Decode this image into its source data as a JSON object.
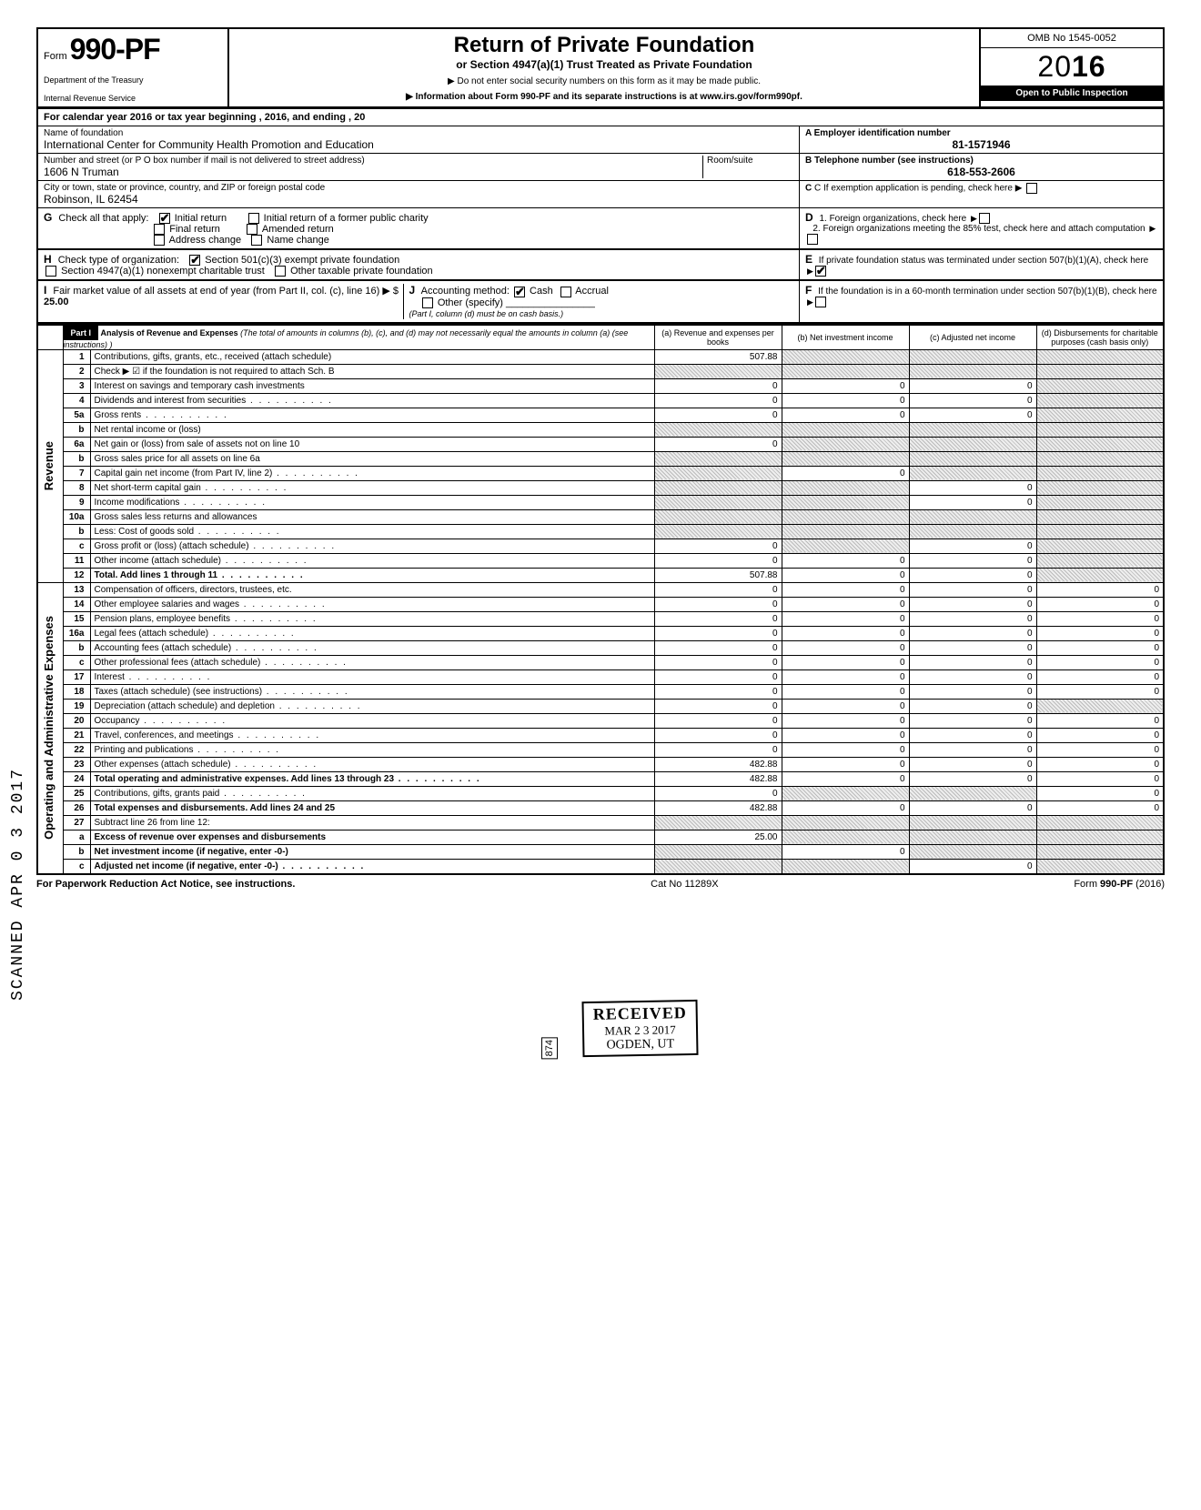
{
  "header": {
    "form_prefix": "Form",
    "form_no": "990-PF",
    "dept1": "Department of the Treasury",
    "dept2": "Internal Revenue Service",
    "title": "Return of Private Foundation",
    "subtitle": "or Section 4947(a)(1) Trust Treated as Private Foundation",
    "line1": "▶ Do not enter social security numbers on this form as it may be made public.",
    "line2": "▶ Information about Form 990-PF and its separate instructions is at www.irs.gov/form990pf.",
    "omb": "OMB No 1545-0052",
    "year_prefix": "20",
    "year_bold": "16",
    "open": "Open to Public Inspection"
  },
  "cal": "For calendar year 2016 or tax year beginning                                                    , 2016, and ending                                        , 20",
  "id": {
    "name_lbl": "Name of foundation",
    "name": "International Center for Community Health Promotion and Education",
    "addr_lbl": "Number and street (or P O  box number if mail is not delivered to street address)",
    "addr": "1606 N Truman",
    "city_lbl": "City or town, state or province, country, and ZIP or foreign postal code",
    "city": "Robinson, IL 62454",
    "room_lbl": "Room/suite",
    "ein_lbl": "A  Employer identification number",
    "ein": "81-1571946",
    "tel_lbl": "B  Telephone number (see instructions)",
    "tel": "618-553-2606",
    "c_lbl": "C  If exemption application is pending, check here ▶"
  },
  "g": {
    "label": "Check all that apply:",
    "opts": [
      "Initial return",
      "Initial return of a former public charity",
      "Final return",
      "Amended return",
      "Address change",
      "Name change"
    ]
  },
  "h": {
    "label": "Check type of organization:",
    "opt1": "Section 501(c)(3) exempt private foundation",
    "opt2": "Section 4947(a)(1) nonexempt charitable trust",
    "opt3": "Other taxable private foundation"
  },
  "i": {
    "label": "Fair market value of all assets at end of year  (from Part II, col. (c), line 16) ▶ $",
    "val": "25.00"
  },
  "j": {
    "label": "Accounting method:",
    "cash": "Cash",
    "accrual": "Accrual",
    "other": "Other (specify)",
    "note": "(Part I, column (d) must be on cash basis.)"
  },
  "d": {
    "d1": "1. Foreign organizations, check here",
    "d2": "2. Foreign organizations meeting the 85% test, check here and attach computation",
    "e": "If private foundation status was terminated under section 507(b)(1)(A), check here",
    "f": "If the foundation is in a 60-month termination under section 507(b)(1)(B), check here"
  },
  "part1": {
    "tag": "Part I",
    "title": "Analysis of Revenue and Expenses",
    "note": "(The total of amounts in columns (b), (c), and (d) may not necessarily equal the amounts in column (a) (see instructions) )",
    "cols": {
      "a": "(a) Revenue and expenses per books",
      "b": "(b) Net investment income",
      "c": "(c) Adjusted net income",
      "d": "(d) Disbursements for charitable purposes (cash basis only)"
    }
  },
  "side": {
    "rev": "Revenue",
    "exp": "Operating and Administrative Expenses"
  },
  "rows": [
    {
      "n": "1",
      "d": "Contributions, gifts, grants, etc., received (attach schedule)",
      "a": "507.88",
      "b": "",
      "c": "",
      "dd": "",
      "sb": true,
      "sc": true,
      "sd": true
    },
    {
      "n": "2",
      "d": "Check ▶ ☑ if the foundation is not required to attach Sch. B",
      "a": "",
      "b": "",
      "c": "",
      "dd": "",
      "sa": true,
      "sb": true,
      "sc": true,
      "sd": true
    },
    {
      "n": "3",
      "d": "Interest on savings and temporary cash investments",
      "a": "0",
      "b": "0",
      "c": "0",
      "dd": "",
      "sd": true
    },
    {
      "n": "4",
      "d": "Dividends and interest from securities",
      "a": "0",
      "b": "0",
      "c": "0",
      "dd": "",
      "sd": true,
      "dots": true
    },
    {
      "n": "5a",
      "d": "Gross rents",
      "a": "0",
      "b": "0",
      "c": "0",
      "dd": "",
      "sd": true,
      "dots": true
    },
    {
      "n": "b",
      "d": "Net rental income or (loss)",
      "a": "",
      "b": "",
      "c": "",
      "dd": "",
      "sa": true,
      "sb": true,
      "sc": true,
      "sd": true
    },
    {
      "n": "6a",
      "d": "Net gain or (loss) from sale of assets not on line 10",
      "a": "0",
      "b": "",
      "c": "",
      "dd": "",
      "sb": true,
      "sc": true,
      "sd": true
    },
    {
      "n": "b",
      "d": "Gross sales price for all assets on line 6a",
      "a": "",
      "b": "",
      "c": "",
      "dd": "",
      "sa": true,
      "sb": true,
      "sc": true,
      "sd": true
    },
    {
      "n": "7",
      "d": "Capital gain net income (from Part IV, line 2)",
      "a": "",
      "b": "0",
      "c": "",
      "dd": "",
      "sa": true,
      "sc": true,
      "sd": true,
      "dots": true
    },
    {
      "n": "8",
      "d": "Net short-term capital gain",
      "a": "",
      "b": "",
      "c": "0",
      "dd": "",
      "sa": true,
      "sb": true,
      "sd": true,
      "dots": true
    },
    {
      "n": "9",
      "d": "Income modifications",
      "a": "",
      "b": "",
      "c": "0",
      "dd": "",
      "sa": true,
      "sb": true,
      "sd": true,
      "dots": true
    },
    {
      "n": "10a",
      "d": "Gross sales less returns and allowances",
      "a": "",
      "b": "",
      "c": "",
      "dd": "",
      "sa": true,
      "sb": true,
      "sc": true,
      "sd": true
    },
    {
      "n": "b",
      "d": "Less: Cost of goods sold",
      "a": "",
      "b": "",
      "c": "",
      "dd": "",
      "sa": true,
      "sb": true,
      "sc": true,
      "sd": true,
      "dots": true
    },
    {
      "n": "c",
      "d": "Gross profit or (loss) (attach schedule)",
      "a": "0",
      "b": "",
      "c": "0",
      "dd": "",
      "sb": true,
      "sd": true,
      "dots": true
    },
    {
      "n": "11",
      "d": "Other income (attach schedule)",
      "a": "0",
      "b": "0",
      "c": "0",
      "dd": "",
      "sd": true,
      "dots": true
    },
    {
      "n": "12",
      "d": "Total. Add lines 1 through 11",
      "a": "507.88",
      "b": "0",
      "c": "0",
      "dd": "",
      "sd": true,
      "bold": true,
      "dots": true
    },
    {
      "n": "13",
      "d": "Compensation of officers, directors, trustees, etc.",
      "a": "0",
      "b": "0",
      "c": "0",
      "dd": "0"
    },
    {
      "n": "14",
      "d": "Other employee salaries and wages",
      "a": "0",
      "b": "0",
      "c": "0",
      "dd": "0",
      "dots": true
    },
    {
      "n": "15",
      "d": "Pension plans, employee benefits",
      "a": "0",
      "b": "0",
      "c": "0",
      "dd": "0",
      "dots": true
    },
    {
      "n": "16a",
      "d": "Legal fees (attach schedule)",
      "a": "0",
      "b": "0",
      "c": "0",
      "dd": "0",
      "dots": true
    },
    {
      "n": "b",
      "d": "Accounting fees (attach schedule)",
      "a": "0",
      "b": "0",
      "c": "0",
      "dd": "0",
      "dots": true
    },
    {
      "n": "c",
      "d": "Other professional fees (attach schedule)",
      "a": "0",
      "b": "0",
      "c": "0",
      "dd": "0",
      "dots": true
    },
    {
      "n": "17",
      "d": "Interest",
      "a": "0",
      "b": "0",
      "c": "0",
      "dd": "0",
      "dots": true
    },
    {
      "n": "18",
      "d": "Taxes (attach schedule) (see instructions)",
      "a": "0",
      "b": "0",
      "c": "0",
      "dd": "0",
      "dots": true
    },
    {
      "n": "19",
      "d": "Depreciation (attach schedule) and depletion",
      "a": "0",
      "b": "0",
      "c": "0",
      "dd": "",
      "sd": true,
      "dots": true
    },
    {
      "n": "20",
      "d": "Occupancy",
      "a": "0",
      "b": "0",
      "c": "0",
      "dd": "0",
      "dots": true
    },
    {
      "n": "21",
      "d": "Travel, conferences, and meetings",
      "a": "0",
      "b": "0",
      "c": "0",
      "dd": "0",
      "dots": true
    },
    {
      "n": "22",
      "d": "Printing and publications",
      "a": "0",
      "b": "0",
      "c": "0",
      "dd": "0",
      "dots": true
    },
    {
      "n": "23",
      "d": "Other expenses (attach schedule)",
      "a": "482.88",
      "b": "0",
      "c": "0",
      "dd": "0",
      "dots": true
    },
    {
      "n": "24",
      "d": "Total operating and administrative expenses. Add lines 13 through 23",
      "a": "482.88",
      "b": "0",
      "c": "0",
      "dd": "0",
      "bold": true,
      "dots": true
    },
    {
      "n": "25",
      "d": "Contributions, gifts, grants paid",
      "a": "0",
      "b": "",
      "c": "",
      "dd": "0",
      "sb": true,
      "sc": true,
      "dots": true
    },
    {
      "n": "26",
      "d": "Total expenses and disbursements. Add lines 24 and 25",
      "a": "482.88",
      "b": "0",
      "c": "0",
      "dd": "0",
      "bold": true
    },
    {
      "n": "27",
      "d": "Subtract line 26 from line 12:",
      "a": "",
      "b": "",
      "c": "",
      "dd": "",
      "sa": true,
      "sb": true,
      "sc": true,
      "sd": true
    },
    {
      "n": "a",
      "d": "Excess of revenue over expenses and disbursements",
      "a": "25.00",
      "b": "",
      "c": "",
      "dd": "",
      "sb": true,
      "sc": true,
      "sd": true,
      "bold": true
    },
    {
      "n": "b",
      "d": "Net investment income (if negative, enter -0-)",
      "a": "",
      "b": "0",
      "c": "",
      "dd": "",
      "sa": true,
      "sc": true,
      "sd": true,
      "bold": true
    },
    {
      "n": "c",
      "d": "Adjusted net income (if negative, enter -0-)",
      "a": "",
      "b": "",
      "c": "0",
      "dd": "",
      "sa": true,
      "sb": true,
      "sd": true,
      "bold": true,
      "dots": true
    }
  ],
  "footer": {
    "l": "For Paperwork Reduction Act Notice, see instructions.",
    "c": "Cat  No  11289X",
    "r": "Form 990-PF (2016)"
  },
  "stamps": {
    "received": "RECEIVED",
    "date": "MAR 2 3 2017",
    "ogden": "OGDEN, UT",
    "scanned": "SCANNED APR 0 3 2017",
    "num": "874"
  }
}
